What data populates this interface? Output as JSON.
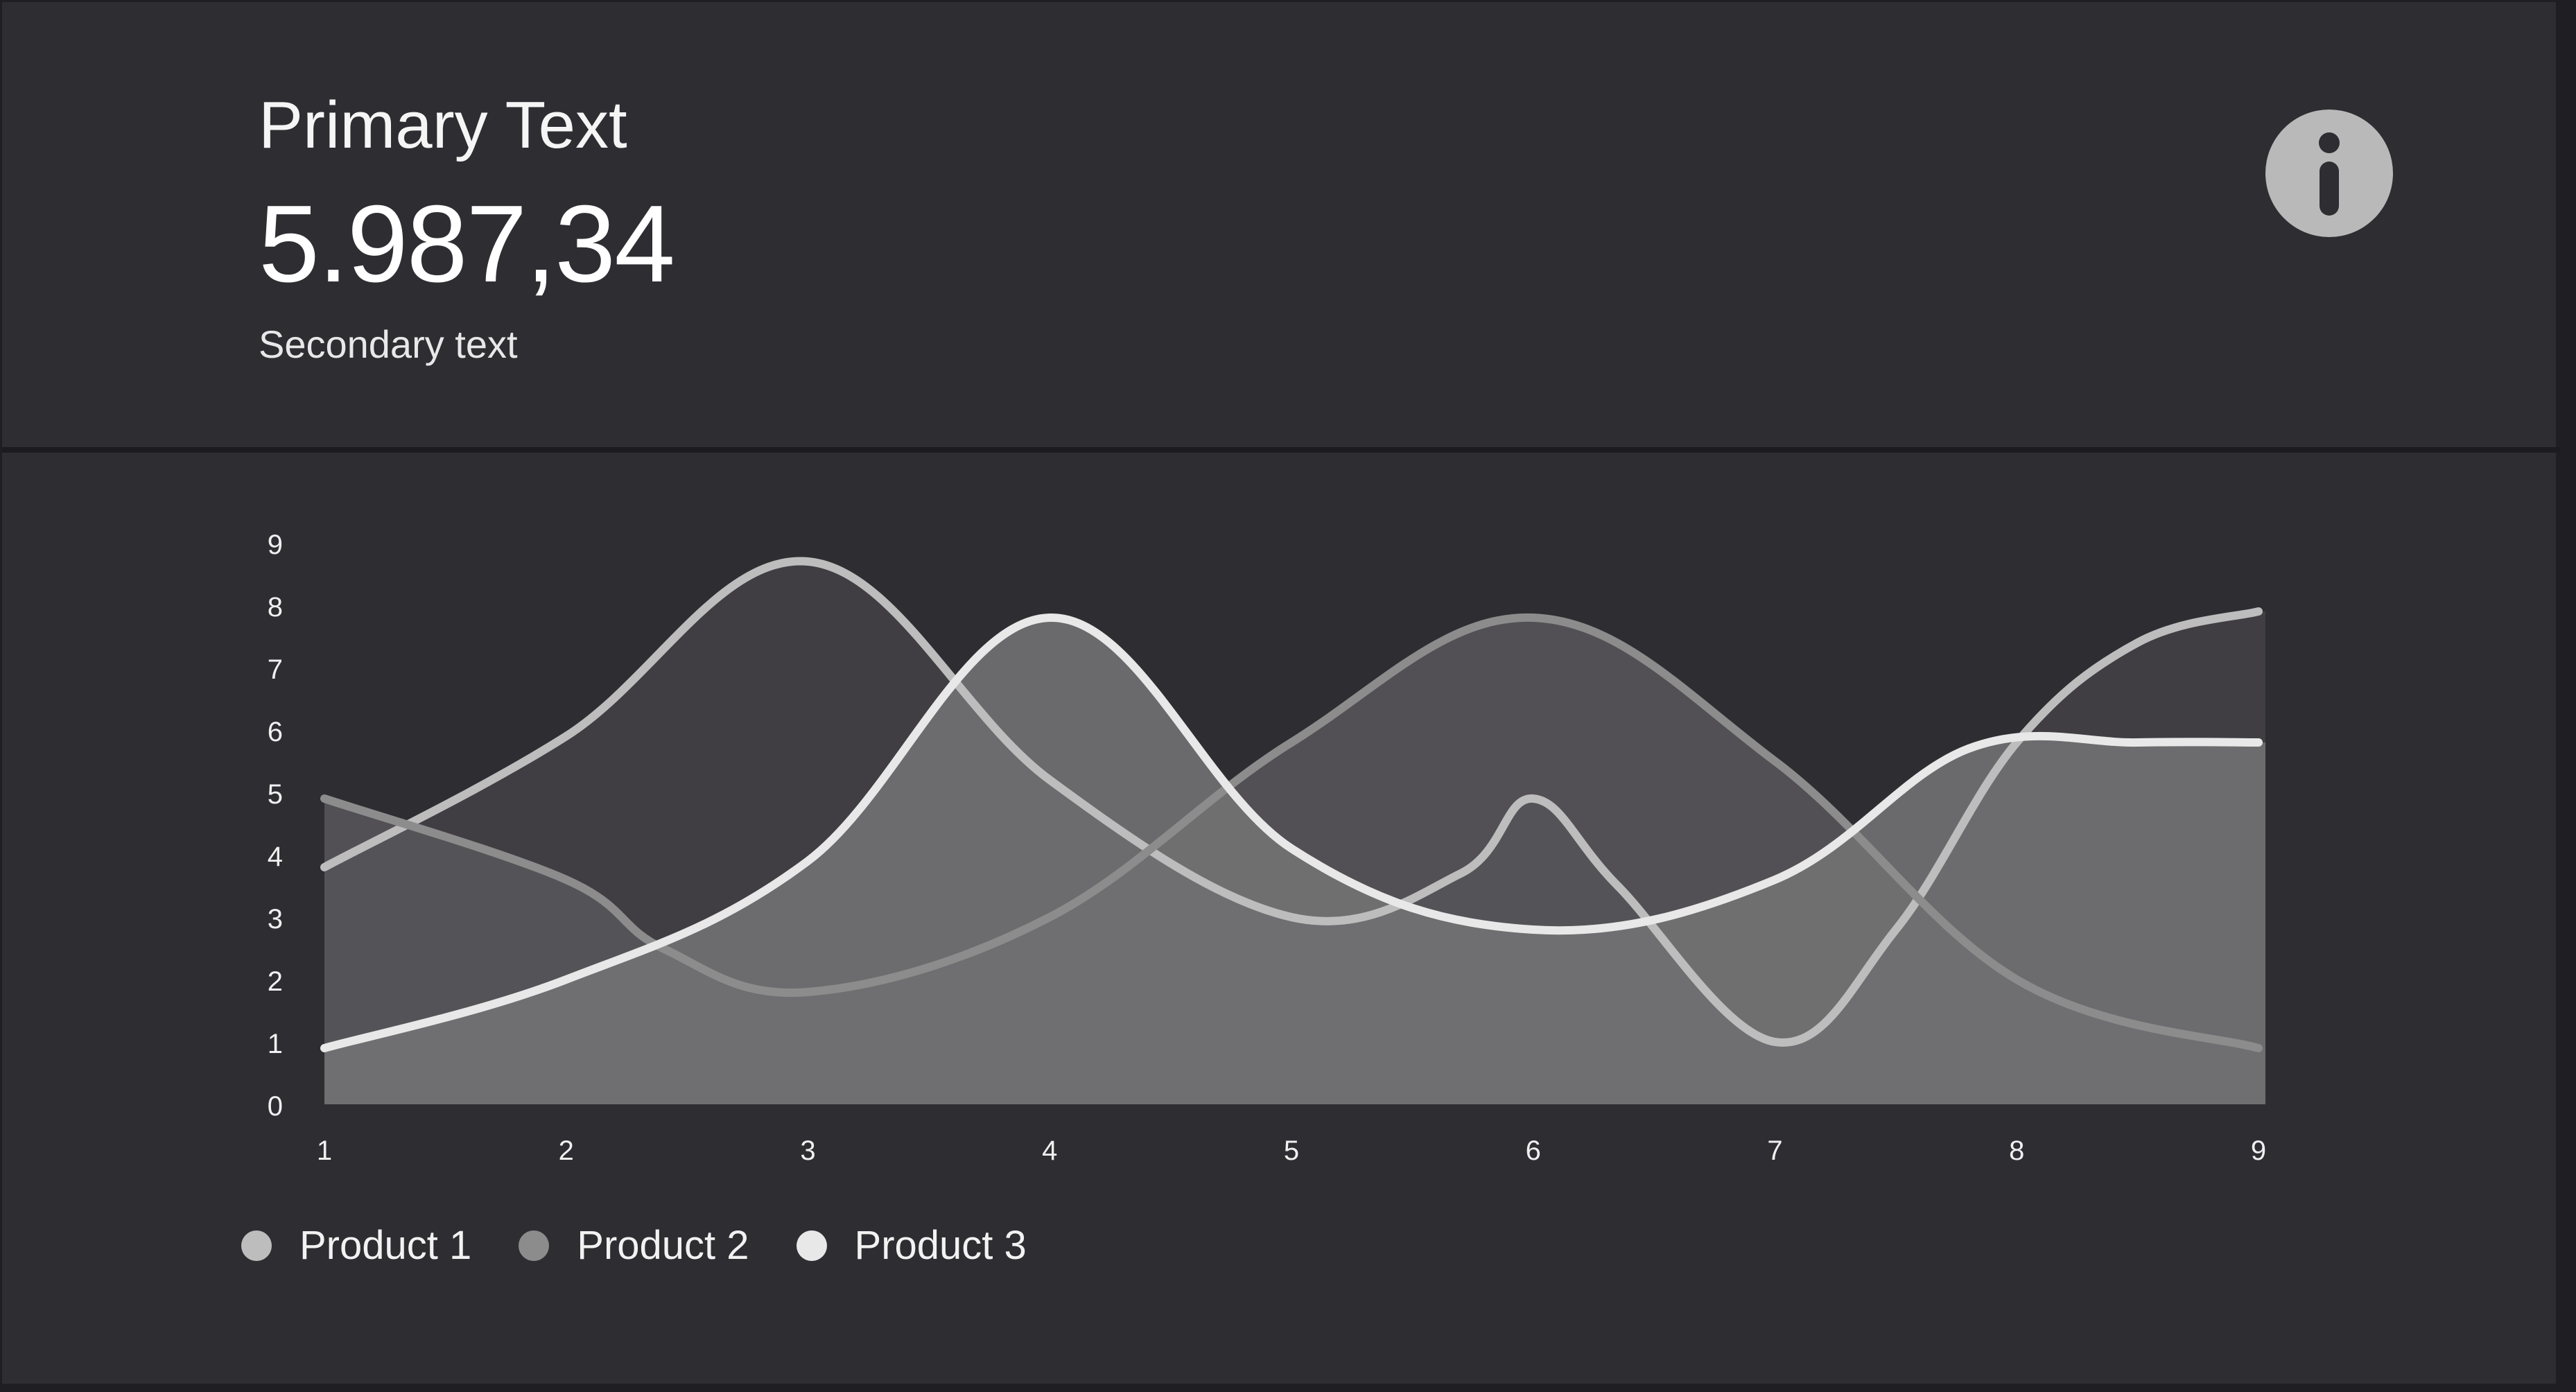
{
  "header": {
    "title": "Primary Text",
    "value": "5.987,34",
    "subtitle": "Secondary text",
    "info_icon": "info-icon"
  },
  "colors": {
    "card_background": "#2e2d32",
    "product1": "#bdbdbd",
    "product2": "#8c8c8c",
    "product3": "#e8e8e8"
  },
  "legend": [
    {
      "label": "Product 1",
      "color": "#bdbdbd"
    },
    {
      "label": "Product 2",
      "color": "#8c8c8c"
    },
    {
      "label": "Product 3",
      "color": "#e8e8e8"
    }
  ],
  "chart_data": {
    "type": "area",
    "x": [
      1,
      2,
      3,
      4,
      5,
      6,
      7,
      8,
      9
    ],
    "xlim": [
      1,
      9
    ],
    "ylim": [
      0,
      9
    ],
    "y_ticks": [
      "0",
      "1",
      "2",
      "3",
      "4",
      "5",
      "6",
      "7",
      "8",
      "9"
    ],
    "x_ticks": [
      "1",
      "2",
      "3",
      "4",
      "5",
      "6",
      "7",
      "8",
      "9"
    ],
    "grid": false,
    "legend_position": "bottom-left",
    "series": [
      {
        "name": "Product 1",
        "color": "#bdbdbd",
        "fill": "#434246",
        "points": [
          [
            1,
            3.8
          ],
          [
            2,
            5.9
          ],
          [
            3,
            8.7
          ],
          [
            4,
            5.2
          ],
          [
            5,
            3.0
          ],
          [
            5.7,
            3.7
          ],
          [
            6,
            4.9
          ],
          [
            6.35,
            3.5
          ],
          [
            7,
            1.0
          ],
          [
            7.5,
            2.8
          ],
          [
            8,
            5.8
          ],
          [
            8.5,
            7.4
          ],
          [
            9,
            7.9
          ]
        ]
      },
      {
        "name": "Product 2",
        "color": "#8c8c8c",
        "fill": "#58575a",
        "points": [
          [
            1,
            4.9
          ],
          [
            2,
            3.6
          ],
          [
            2.4,
            2.5
          ],
          [
            3,
            1.8
          ],
          [
            4,
            3.0
          ],
          [
            5,
            5.8
          ],
          [
            6,
            7.8
          ],
          [
            7,
            5.5
          ],
          [
            8,
            2.0
          ],
          [
            9,
            0.9
          ]
        ]
      },
      {
        "name": "Product 3",
        "color": "#e8e8e8",
        "fill": "#747476",
        "points": [
          [
            1,
            0.9
          ],
          [
            2,
            2.0
          ],
          [
            3,
            3.9
          ],
          [
            4,
            7.8
          ],
          [
            5,
            4.1
          ],
          [
            6,
            2.8
          ],
          [
            7,
            3.6
          ],
          [
            7.8,
            5.7
          ],
          [
            8.5,
            5.8
          ],
          [
            9,
            5.8
          ]
        ]
      }
    ]
  }
}
